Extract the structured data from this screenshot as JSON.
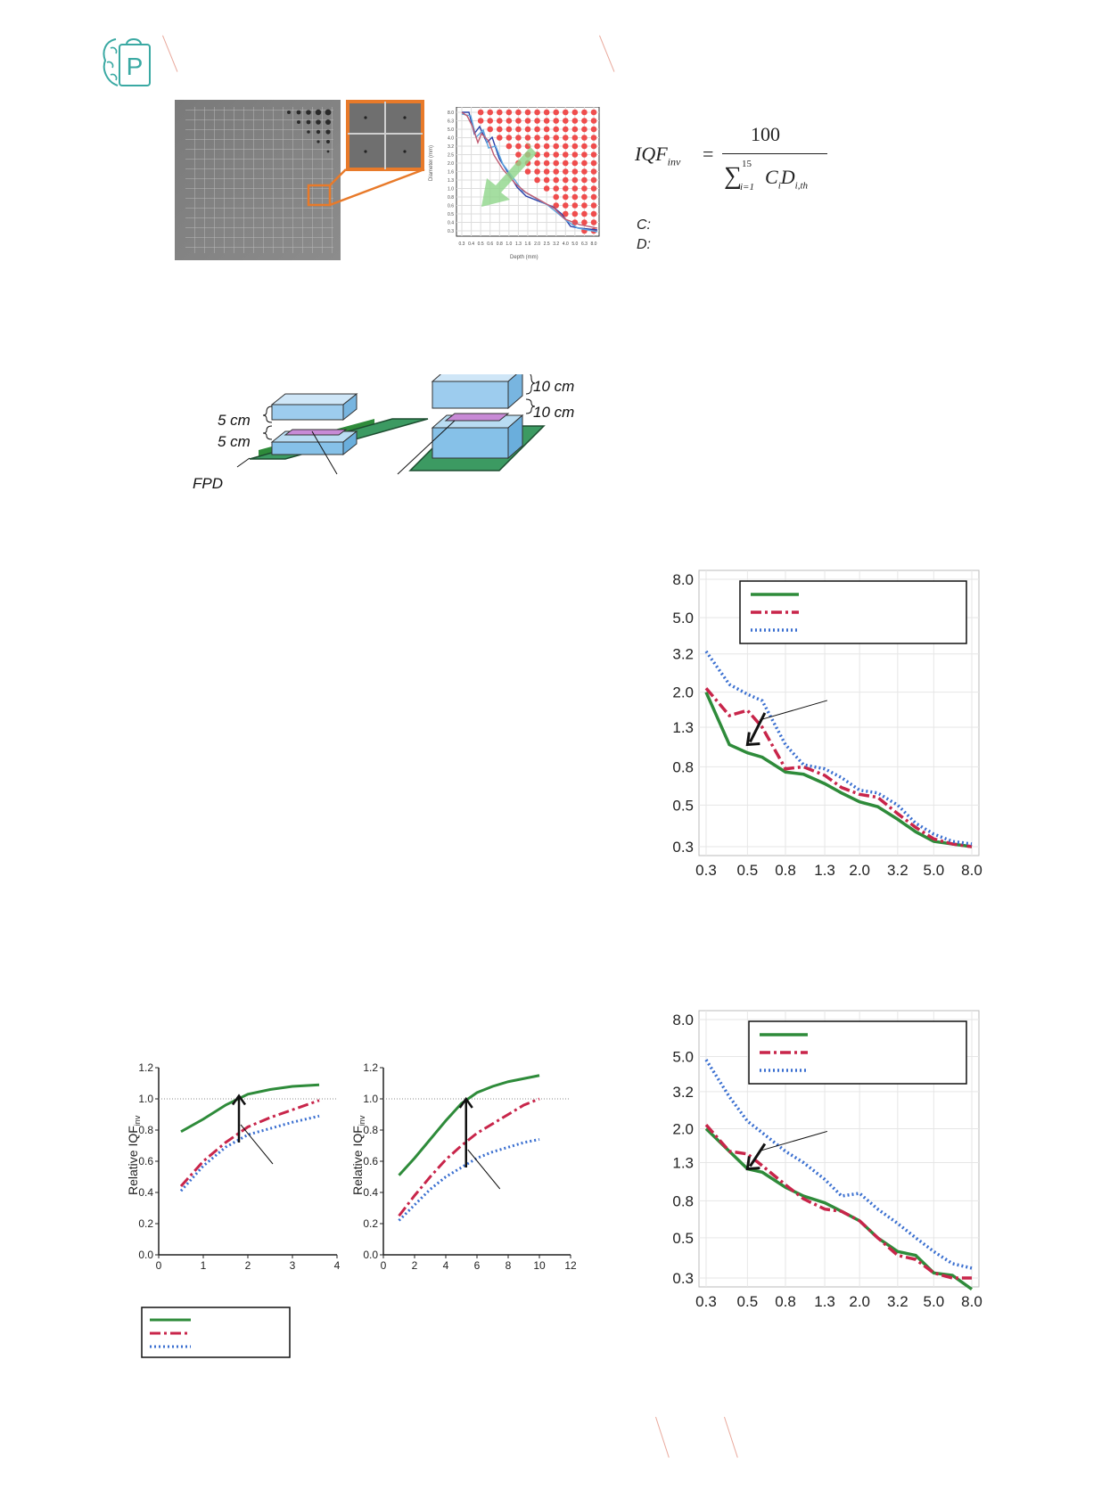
{
  "colors": {
    "accent_slash": "#e9a89b",
    "logo_teal": "#3aa9a3",
    "orange_callout": "#e87a2a",
    "green": "#2e8b3a",
    "crimson": "#c8254a",
    "blue": "#3a6fd0",
    "arrow_green": "#8fd68a",
    "dot_red": "#ef4d4d"
  },
  "header": {
    "logo_letter": "P",
    "logo_icon": "brain-bag-logo-icon"
  },
  "formula": {
    "lhs": "IQF",
    "lhs_sub": "inv",
    "numerator": "100",
    "sum_upper": "15",
    "sum_lower": "i=1",
    "term_c": "C",
    "term_c_sub": "i",
    "term_d": "D",
    "term_d_sub": "i,th",
    "legend_c": "C:",
    "legend_d": "D:"
  },
  "contrast_detail_mini": {
    "ylabel": "Diameter (mm)",
    "xlabel": "Depth (mm)",
    "y_ticks": [
      "8.0",
      "6.3",
      "5.0",
      "4.0",
      "3.2",
      "2.5",
      "2.0",
      "1.6",
      "1.3",
      "1.0",
      "0.8",
      "0.6",
      "0.5",
      "0.4",
      "0.3"
    ],
    "x_ticks": [
      "0.3",
      "0.4",
      "0.5",
      "0.6",
      "0.8",
      "1.0",
      "1.3",
      "1.6",
      "2.0",
      "2.5",
      "3.2",
      "4.0",
      "5.0",
      "6.3",
      "8.0"
    ]
  },
  "phantom_setup": {
    "small": {
      "top_label": "5 cm",
      "bottom_label": "5 cm"
    },
    "large": {
      "top_label": "10 cm",
      "bottom_label": "10 cm"
    },
    "detector_label": "FPD"
  },
  "chart_data": [
    {
      "type": "line",
      "x_ticks": [
        "0",
        "1",
        "2",
        "3",
        "4"
      ],
      "y_ticks": [
        "0.0",
        "0.2",
        "0.4",
        "0.6",
        "0.8",
        "1.0",
        "1.2"
      ],
      "ylabel": "Relative IQF",
      "ylabel_sub": "inv",
      "xlim": [
        0,
        4
      ],
      "ylim": [
        0,
        1.2
      ],
      "grid": false,
      "series": [
        {
          "style": "solid",
          "color": "#2e8b3a",
          "x": [
            0.5,
            1.0,
            1.5,
            2.0,
            2.5,
            3.0,
            3.6
          ],
          "y": [
            0.79,
            0.87,
            0.96,
            1.03,
            1.06,
            1.08,
            1.09
          ]
        },
        {
          "style": "dashdot",
          "color": "#c8254a",
          "x": [
            0.5,
            1.0,
            1.5,
            2.0,
            2.5,
            3.0,
            3.6
          ],
          "y": [
            0.44,
            0.6,
            0.72,
            0.82,
            0.88,
            0.93,
            0.99
          ]
        },
        {
          "style": "dotted",
          "color": "#3a6fd0",
          "x": [
            0.5,
            1.0,
            1.5,
            2.0,
            2.5,
            3.0,
            3.6
          ],
          "y": [
            0.41,
            0.57,
            0.69,
            0.77,
            0.81,
            0.85,
            0.89
          ]
        }
      ]
    },
    {
      "type": "line",
      "x_ticks": [
        "0",
        "2",
        "4",
        "6",
        "8",
        "10",
        "12"
      ],
      "y_ticks": [
        "0.0",
        "0.2",
        "0.4",
        "0.6",
        "0.8",
        "1.0",
        "1.2"
      ],
      "ylabel": "Relative IQF",
      "ylabel_sub": "inv",
      "xlim": [
        0,
        12
      ],
      "ylim": [
        0,
        1.2
      ],
      "grid": false,
      "series": [
        {
          "style": "solid",
          "color": "#2e8b3a",
          "x": [
            1,
            2,
            3,
            4,
            5,
            6,
            7,
            8,
            9,
            10
          ],
          "y": [
            0.51,
            0.62,
            0.74,
            0.86,
            0.97,
            1.04,
            1.08,
            1.11,
            1.13,
            1.15
          ]
        },
        {
          "style": "dashdot",
          "color": "#c8254a",
          "x": [
            1,
            2,
            3,
            4,
            5,
            6,
            7,
            8,
            9,
            10
          ],
          "y": [
            0.25,
            0.38,
            0.5,
            0.61,
            0.7,
            0.78,
            0.84,
            0.9,
            0.96,
            1.0
          ]
        },
        {
          "style": "dotted",
          "color": "#3a6fd0",
          "x": [
            1,
            2,
            3,
            4,
            5,
            6,
            7,
            8,
            9,
            10
          ],
          "y": [
            0.22,
            0.32,
            0.42,
            0.5,
            0.56,
            0.62,
            0.66,
            0.69,
            0.72,
            0.74
          ]
        }
      ]
    },
    {
      "type": "line",
      "x_ticks": [
        "0.3",
        "0.5",
        "0.8",
        "1.3",
        "2.0",
        "3.2",
        "5.0",
        "8.0"
      ],
      "y_ticks": [
        "8.0",
        "5.0",
        "3.2",
        "2.0",
        "1.3",
        "0.8",
        "0.5",
        "0.3"
      ],
      "grid": true,
      "series": [
        {
          "style": "solid",
          "color": "#2e8b3a",
          "x": [
            0.3,
            0.4,
            0.5,
            0.6,
            0.8,
            1.0,
            1.3,
            1.6,
            2.0,
            2.5,
            3.2,
            4.0,
            5.0,
            6.3,
            8.0
          ],
          "y": [
            2.0,
            1.05,
            0.95,
            0.9,
            0.75,
            0.73,
            0.65,
            0.58,
            0.52,
            0.49,
            0.42,
            0.36,
            0.32,
            0.31,
            0.3
          ]
        },
        {
          "style": "dashdot",
          "color": "#c8254a",
          "x": [
            0.3,
            0.4,
            0.5,
            0.6,
            0.8,
            1.0,
            1.3,
            1.6,
            2.0,
            2.5,
            3.2,
            4.0,
            5.0,
            6.3,
            8.0
          ],
          "y": [
            2.1,
            1.5,
            1.6,
            1.3,
            0.78,
            0.8,
            0.72,
            0.62,
            0.57,
            0.55,
            0.45,
            0.38,
            0.33,
            0.31,
            0.3
          ]
        },
        {
          "style": "dotted",
          "color": "#3a6fd0",
          "x": [
            0.3,
            0.4,
            0.5,
            0.6,
            0.8,
            1.0,
            1.3,
            1.6,
            2.0,
            2.5,
            3.2,
            4.0,
            5.0,
            6.3,
            8.0
          ],
          "y": [
            3.3,
            2.2,
            1.95,
            1.8,
            1.05,
            0.82,
            0.78,
            0.7,
            0.6,
            0.58,
            0.5,
            0.4,
            0.35,
            0.32,
            0.31
          ]
        }
      ]
    },
    {
      "type": "line",
      "x_ticks": [
        "0.3",
        "0.5",
        "0.8",
        "1.3",
        "2.0",
        "3.2",
        "5.0",
        "8.0"
      ],
      "y_ticks": [
        "8.0",
        "5.0",
        "3.2",
        "2.0",
        "1.3",
        "0.8",
        "0.5",
        "0.3"
      ],
      "grid": true,
      "series": [
        {
          "style": "solid",
          "color": "#2e8b3a",
          "x": [
            0.3,
            0.4,
            0.5,
            0.6,
            0.8,
            1.0,
            1.3,
            1.6,
            2.0,
            2.5,
            3.2,
            4.0,
            5.0,
            6.3,
            8.0
          ],
          "y": [
            2.0,
            1.5,
            1.2,
            1.15,
            0.95,
            0.85,
            0.78,
            0.7,
            0.62,
            0.5,
            0.42,
            0.4,
            0.32,
            0.31,
            0.26
          ]
        },
        {
          "style": "dashdot",
          "color": "#c8254a",
          "x": [
            0.3,
            0.4,
            0.5,
            0.6,
            0.8,
            1.0,
            1.3,
            1.6,
            2.0,
            2.5,
            3.2,
            4.0,
            5.0,
            6.3,
            8.0
          ],
          "y": [
            2.1,
            1.5,
            1.45,
            1.25,
            0.98,
            0.82,
            0.72,
            0.7,
            0.62,
            0.5,
            0.4,
            0.38,
            0.32,
            0.3,
            0.3
          ]
        },
        {
          "style": "dotted",
          "color": "#3a6fd0",
          "x": [
            0.3,
            0.4,
            0.5,
            0.6,
            0.8,
            1.0,
            1.3,
            1.6,
            2.0,
            2.5,
            3.2,
            4.0,
            5.0,
            6.3,
            8.0
          ],
          "y": [
            4.8,
            3.0,
            2.2,
            1.9,
            1.5,
            1.3,
            1.05,
            0.85,
            0.88,
            0.72,
            0.6,
            0.5,
            0.42,
            0.36,
            0.34
          ]
        }
      ]
    }
  ]
}
